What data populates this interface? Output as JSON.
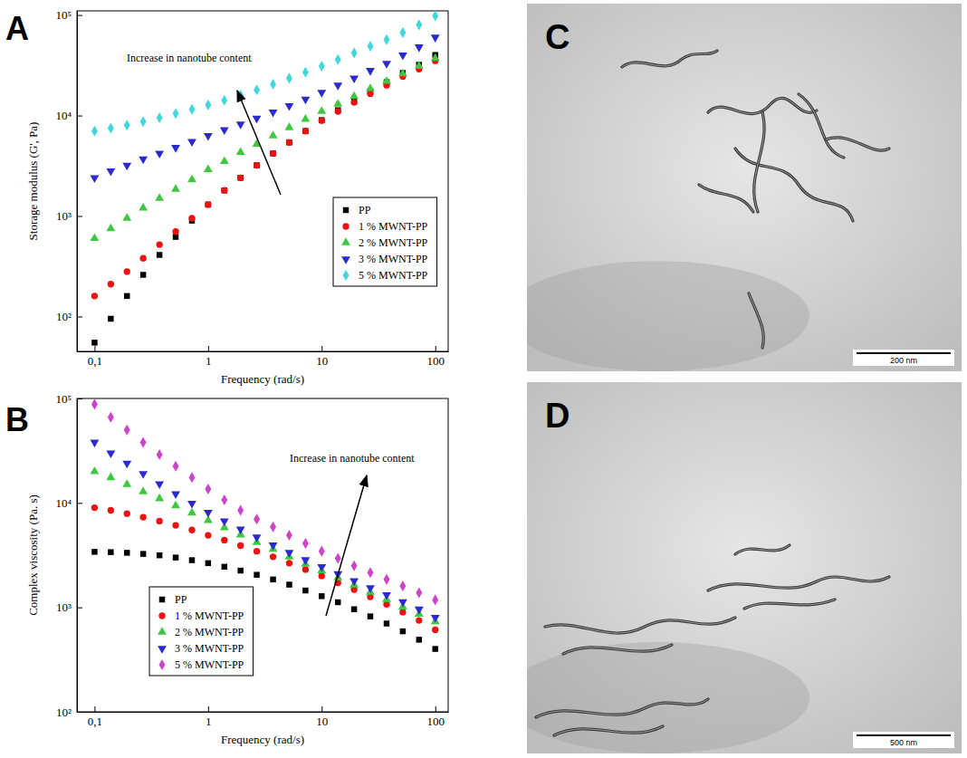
{
  "chart_data": [
    {
      "type": "scatter",
      "x_label": "Frequency (rad/s)",
      "y_label": "Storage modulus (G', Pa)",
      "annotations": [
        "Increase in nanotube content"
      ],
      "log": true,
      "legend": "right",
      "xlim": [
        0.07,
        130
      ],
      "ylim": [
        45,
        110000
      ],
      "xticks": [
        {
          "value": 0.1,
          "label": "0,1"
        },
        1,
        10,
        100
      ],
      "yticks": [
        {
          "value": 100,
          "label": "10²"
        },
        {
          "value": 1000,
          "label": "10³"
        },
        {
          "value": 10000,
          "label": "10⁴"
        },
        {
          "value": 100000,
          "label": "10⁵"
        }
      ],
      "x": [
        0.1,
        0.139,
        0.193,
        0.268,
        0.373,
        0.518,
        0.72,
        1,
        1.39,
        1.93,
        2.68,
        3.73,
        5.18,
        7.2,
        10,
        13.9,
        19.3,
        26.8,
        37.3,
        51.8,
        72,
        100
      ],
      "series": [
        {
          "name": "PP",
          "color": "#000000",
          "marker": "square",
          "values": [
            55,
            95,
            160,
            260,
            410,
            620,
            900,
            1300,
            1800,
            2400,
            3200,
            4200,
            5400,
            7000,
            9000,
            11300,
            14000,
            17500,
            21500,
            26500,
            32000,
            40000
          ]
        },
        {
          "name": "1 % MWNT-PP",
          "color": "#ee1111",
          "marker": "circle",
          "values": [
            160,
            210,
            280,
            380,
            520,
            700,
            950,
            1300,
            1800,
            2400,
            3200,
            4200,
            5400,
            7000,
            8900,
            11000,
            13500,
            16500,
            20000,
            24500,
            29000,
            35000
          ]
        },
        {
          "name": "2 % MWNT-PP",
          "color": "#3fc83f",
          "marker": "triangle-up",
          "values": [
            600,
            750,
            950,
            1200,
            1500,
            1850,
            2300,
            2900,
            3500,
            4300,
            5200,
            6300,
            7600,
            9200,
            11000,
            13000,
            15500,
            18500,
            22000,
            26000,
            31000,
            37000
          ]
        },
        {
          "name": "3 % MWNT-PP",
          "color": "#2a2ad0",
          "marker": "triangle-down",
          "values": [
            2400,
            2800,
            3200,
            3700,
            4200,
            4800,
            5500,
            6300,
            7200,
            8200,
            9400,
            10800,
            12500,
            14500,
            17000,
            20000,
            23500,
            28000,
            33000,
            40000,
            48000,
            60000
          ]
        },
        {
          "name": "5 % MWNT-PP",
          "color": "#40d8dc",
          "marker": "diamond",
          "values": [
            7000,
            7500,
            8000,
            8700,
            9500,
            10500,
            11500,
            12800,
            14200,
            16000,
            18000,
            20500,
            23500,
            27000,
            31000,
            36000,
            42000,
            49000,
            57000,
            67000,
            80000,
            98000
          ]
        }
      ]
    },
    {
      "type": "scatter",
      "x_label": "Frequency (rad/s)",
      "y_label": "Complex viscosity (Pa. s)",
      "annotations": [
        "Increase in nanotube content"
      ],
      "log": true,
      "legend": "lower-left",
      "xlim": [
        0.07,
        130
      ],
      "ylim": [
        100,
        100000
      ],
      "xticks": [
        {
          "value": 0.1,
          "label": "0,1"
        },
        1,
        10,
        100
      ],
      "yticks": [
        {
          "value": 100,
          "label": "10²"
        },
        {
          "value": 1000,
          "label": "10³"
        },
        {
          "value": 10000,
          "label": "10⁴"
        },
        {
          "value": 100000,
          "label": "10⁵"
        }
      ],
      "x": [
        0.1,
        0.139,
        0.193,
        0.268,
        0.373,
        0.518,
        0.72,
        1,
        1.39,
        1.93,
        2.68,
        3.73,
        5.18,
        7.2,
        10,
        13.9,
        19.3,
        26.8,
        37.3,
        51.8,
        72,
        100
      ],
      "series": [
        {
          "name": "PP",
          "color": "#000000",
          "marker": "square",
          "values": [
            3400,
            3380,
            3330,
            3250,
            3150,
            3000,
            2830,
            2650,
            2450,
            2250,
            2050,
            1850,
            1650,
            1450,
            1280,
            1120,
            960,
            820,
            700,
            590,
            490,
            400
          ]
        },
        {
          "name": "1 % MWNT-PP",
          "color": "#ee1111",
          "marker": "circle",
          "values": [
            9000,
            8500,
            7900,
            7300,
            6700,
            6100,
            5500,
            4900,
            4400,
            3900,
            3450,
            3050,
            2650,
            2300,
            2000,
            1720,
            1480,
            1260,
            1070,
            900,
            750,
            610
          ]
        },
        {
          "name": "2 % MWNT-PP",
          "color": "#3fc83f",
          "marker": "triangle-up",
          "values": [
            20000,
            17500,
            15000,
            12800,
            11000,
            9400,
            8000,
            6800,
            5800,
            4950,
            4200,
            3600,
            3050,
            2600,
            2250,
            1920,
            1640,
            1400,
            1190,
            1010,
            860,
            730
          ]
        },
        {
          "name": "3 % MWNT-PP",
          "color": "#2a2ad0",
          "marker": "triangle-down",
          "values": [
            38000,
            30000,
            24000,
            19000,
            15200,
            12200,
            9900,
            8100,
            6700,
            5600,
            4700,
            3950,
            3350,
            2850,
            2450,
            2100,
            1800,
            1540,
            1320,
            1130,
            960,
            800
          ]
        },
        {
          "name": "5 % MWNT-PP",
          "color": "#cc44cc",
          "marker": "diamond",
          "values": [
            88000,
            66000,
            50000,
            38000,
            29000,
            22500,
            17500,
            13600,
            10700,
            8500,
            7000,
            5900,
            4900,
            4100,
            3450,
            2950,
            2500,
            2150,
            1850,
            1600,
            1380,
            1180
          ]
        }
      ]
    }
  ],
  "panels": [
    "A",
    "B",
    "C",
    "D"
  ],
  "images": [
    {
      "scale_bar_label": "200 nm"
    },
    {
      "scale_bar_label": "500 nm"
    }
  ]
}
